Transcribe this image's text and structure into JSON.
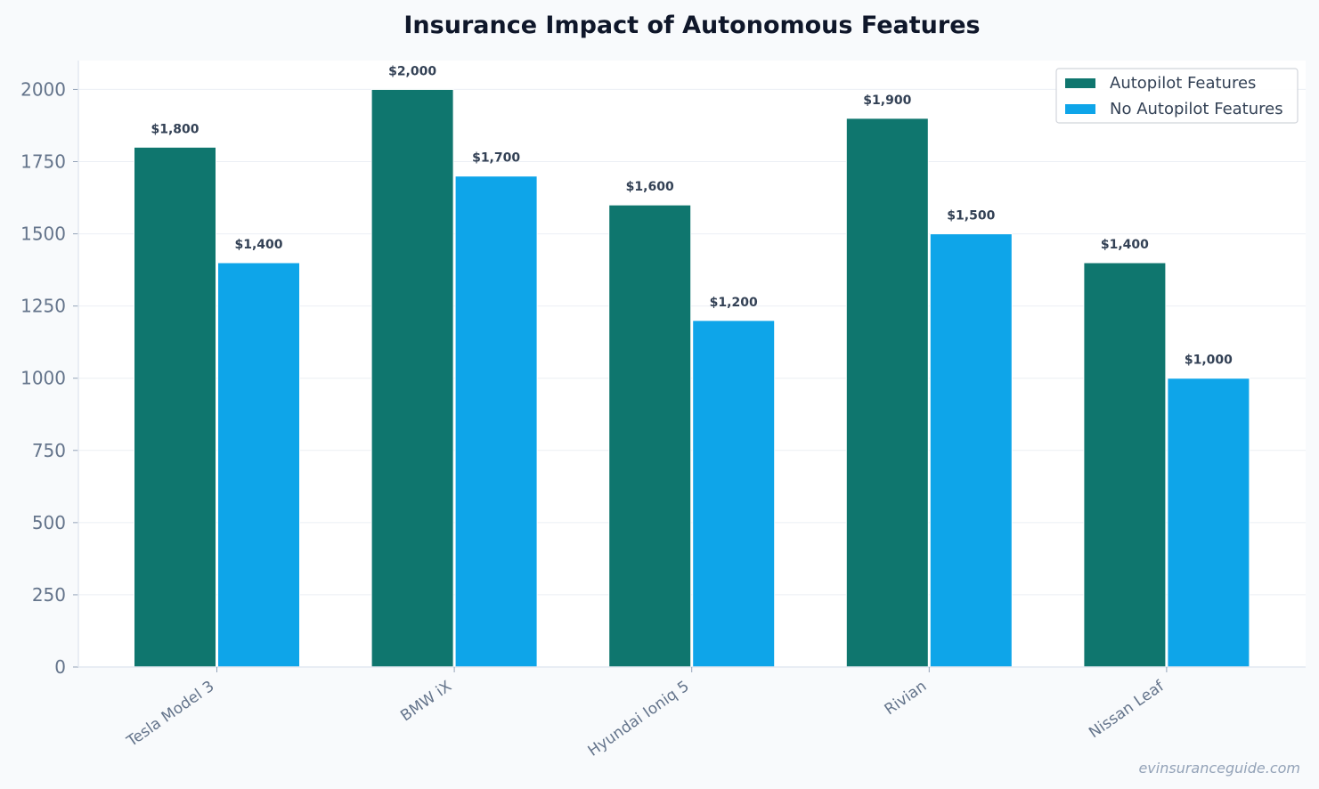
{
  "chart_data": {
    "type": "bar",
    "title": "Insurance Impact of Autonomous Features",
    "xlabel": "",
    "ylabel": "",
    "categories": [
      "Tesla Model 3",
      "BMW iX",
      "Hyundai Ioniq 5",
      "Rivian",
      "Nissan Leaf"
    ],
    "series": [
      {
        "name": "Autopilot Features",
        "color": "#0f766e",
        "values": [
          1800,
          2000,
          1600,
          1900,
          1400
        ],
        "labels": [
          "$1,800",
          "$2,000",
          "$1,600",
          "$1,900",
          "$1,400"
        ]
      },
      {
        "name": "No Autopilot Features",
        "color": "#0ea5e9",
        "values": [
          1400,
          1700,
          1200,
          1500,
          1000
        ],
        "labels": [
          "$1,400",
          "$1,700",
          "$1,200",
          "$1,500",
          "$1,000"
        ]
      }
    ],
    "ylim": [
      0,
      2100
    ],
    "yticks": [
      "0",
      "250",
      "500",
      "750",
      "1000",
      "1250",
      "1500",
      "1750",
      "2000"
    ],
    "grid": true,
    "legend_position": "top-right"
  },
  "watermark": "evinsuranceguide.com"
}
